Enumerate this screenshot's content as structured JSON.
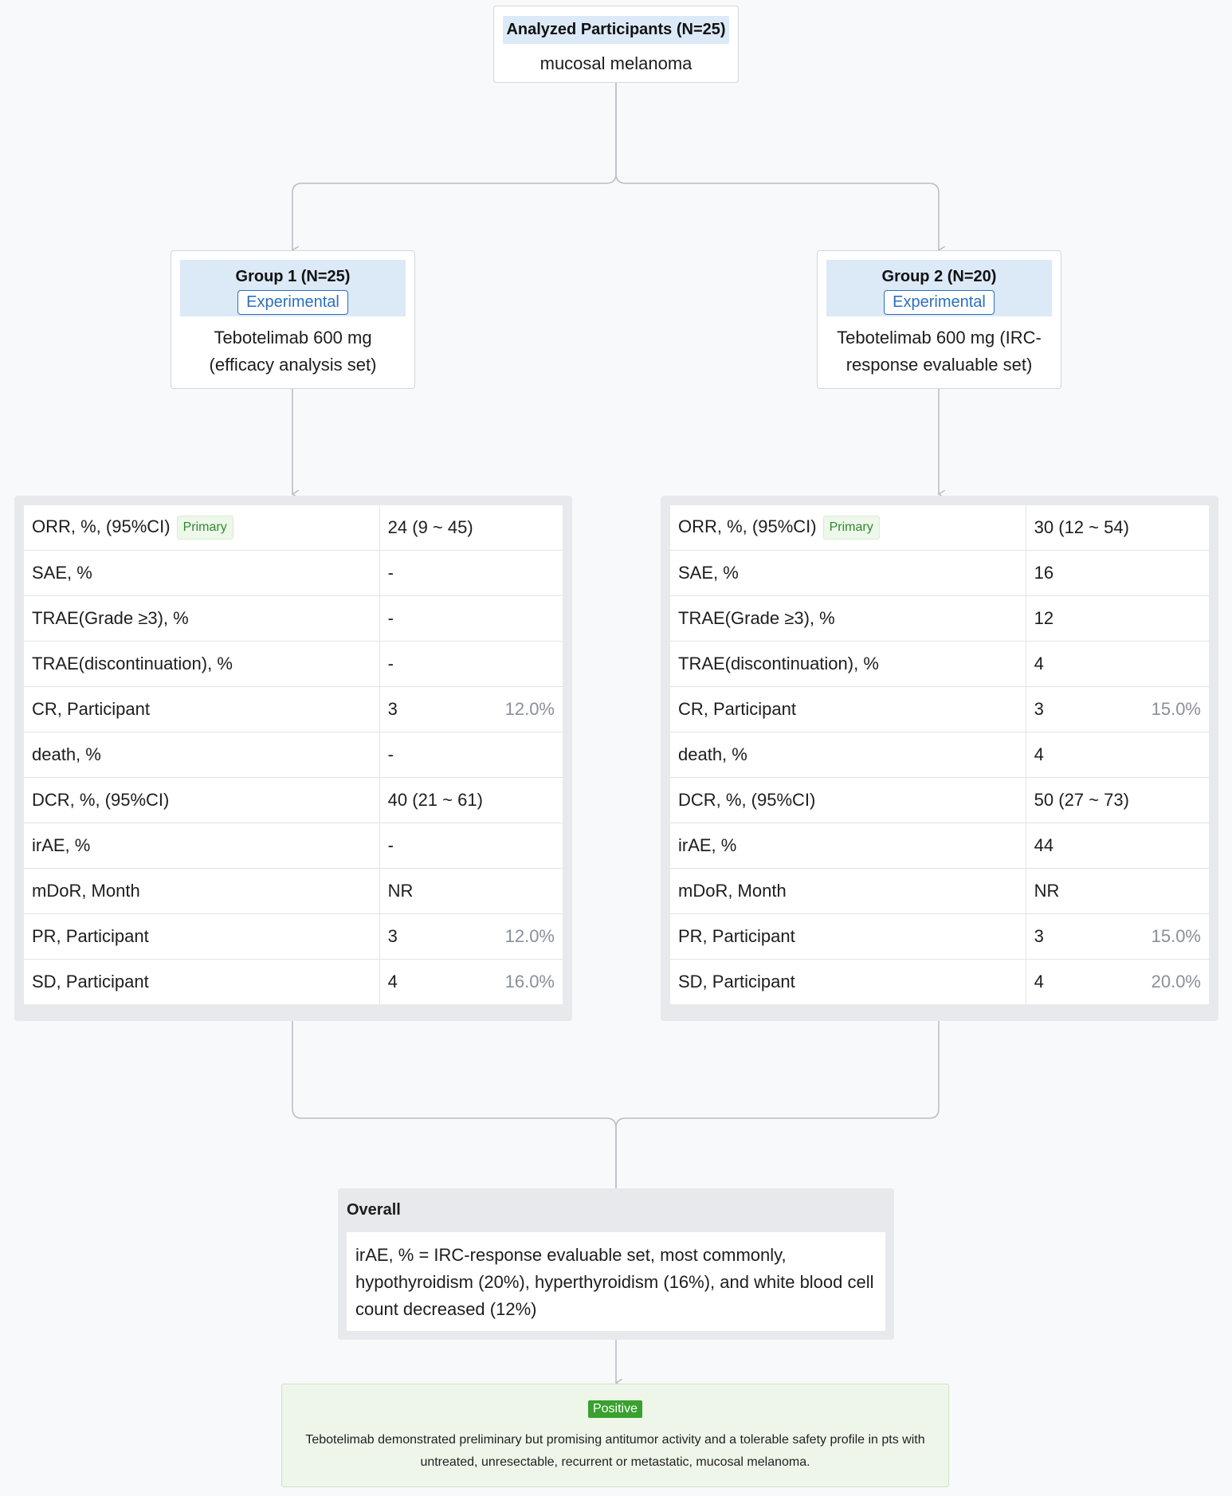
{
  "root": {
    "title": "Analyzed Participants (N=25)",
    "subtitle": "mucosal melanoma"
  },
  "groups": [
    {
      "title": "Group 1 (N=25)",
      "badge": "Experimental",
      "description": "Tebotelimab 600 mg (efficacy analysis set)"
    },
    {
      "title": "Group 2 (N=20)",
      "badge": "Experimental",
      "description": "Tebotelimab 600 mg (IRC-response evaluable set)"
    }
  ],
  "primary_tag": "Primary",
  "results": [
    {
      "rows": [
        {
          "label": "ORR, %, (95%CI)",
          "value": "24 (9 ~ 45)",
          "pct": "",
          "primary": true
        },
        {
          "label": "SAE, %",
          "value": "-",
          "pct": ""
        },
        {
          "label": "TRAE(Grade ≥3), %",
          "value": "-",
          "pct": ""
        },
        {
          "label": "TRAE(discontinuation), %",
          "value": "-",
          "pct": ""
        },
        {
          "label": "CR, Participant",
          "value": "3",
          "pct": "12.0%"
        },
        {
          "label": "death, %",
          "value": "-",
          "pct": ""
        },
        {
          "label": "DCR, %, (95%CI)",
          "value": "40 (21 ~ 61)",
          "pct": ""
        },
        {
          "label": "irAE, %",
          "value": "-",
          "pct": ""
        },
        {
          "label": "mDoR, Month",
          "value": "NR",
          "pct": ""
        },
        {
          "label": "PR, Participant",
          "value": "3",
          "pct": "12.0%"
        },
        {
          "label": "SD, Participant",
          "value": "4",
          "pct": "16.0%"
        }
      ]
    },
    {
      "rows": [
        {
          "label": "ORR, %, (95%CI)",
          "value": "30 (12 ~ 54)",
          "pct": "",
          "primary": true
        },
        {
          "label": "SAE, %",
          "value": "16",
          "pct": ""
        },
        {
          "label": "TRAE(Grade ≥3), %",
          "value": "12",
          "pct": ""
        },
        {
          "label": "TRAE(discontinuation), %",
          "value": "4",
          "pct": ""
        },
        {
          "label": "CR, Participant",
          "value": "3",
          "pct": "15.0%"
        },
        {
          "label": "death, %",
          "value": "4",
          "pct": ""
        },
        {
          "label": "DCR, %, (95%CI)",
          "value": "50 (27 ~ 73)",
          "pct": ""
        },
        {
          "label": "irAE, %",
          "value": "44",
          "pct": ""
        },
        {
          "label": "mDoR, Month",
          "value": "NR",
          "pct": ""
        },
        {
          "label": "PR, Participant",
          "value": "3",
          "pct": "15.0%"
        },
        {
          "label": "SD, Participant",
          "value": "4",
          "pct": "20.0%"
        }
      ]
    }
  ],
  "overall": {
    "title": "Overall",
    "text": "irAE, % = IRC-response evaluable set, most commonly, hypothyroidism (20%), hyperthyroidism (16%), and white blood cell count decreased (12%)"
  },
  "conclusion": {
    "badge": "Positive",
    "text": "Tebotelimab demonstrated preliminary but promising antitumor activity and a tolerable safety profile in pts with untreated, unresectable, recurrent or metastatic, mucosal melanoma."
  },
  "colors": {
    "header_bg": "#dce9f7",
    "badge_blue": "#2c6fc0",
    "positive_green": "#3aa02e",
    "conclusion_bg": "#eef6ea",
    "connector": "#b8bcc4"
  }
}
